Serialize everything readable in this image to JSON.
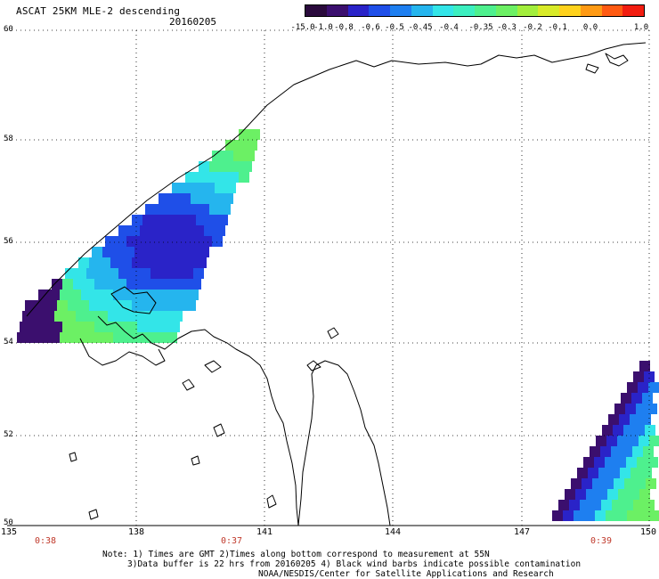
{
  "title": "ASCAT 25KM MLE-2 descending",
  "date": "20160205",
  "colorbar": {
    "colors": [
      "#2a0a3c",
      "#3b0f6e",
      "#2a23c8",
      "#1f4fe8",
      "#1e7ff0",
      "#25b5ee",
      "#33e5e8",
      "#3cefc0",
      "#4ef08e",
      "#6cf064",
      "#a2ee3c",
      "#d8ea28",
      "#ffd21c",
      "#ff9a14",
      "#ff5a12",
      "#f21d10"
    ],
    "labels": [
      "-15.0",
      "-1.0",
      "-0.8",
      "-0.6",
      "-0.5",
      "-0.45",
      "-0.4",
      "-0.35",
      "-0.3",
      "-0.2",
      "-0.1",
      "0.0",
      "1.0"
    ]
  },
  "lat_labels": [
    "60",
    "58",
    "56",
    "54",
    "52",
    "50"
  ],
  "lon_labels": [
    "135",
    "138",
    "141",
    "144",
    "147",
    "150"
  ],
  "time_labels": [
    "0:38",
    "0:37",
    "0:39"
  ],
  "notes": {
    "line1": "Note: 1) Times are GMT 2)Times along bottom correspond to measurement at 55N",
    "line2": "3)Data buffer is 22 hrs from 20160205 4) Black wind barbs indicate possible contamination",
    "line3": "NOAA/NESDIS/Center for Satellite Applications and Research"
  }
}
